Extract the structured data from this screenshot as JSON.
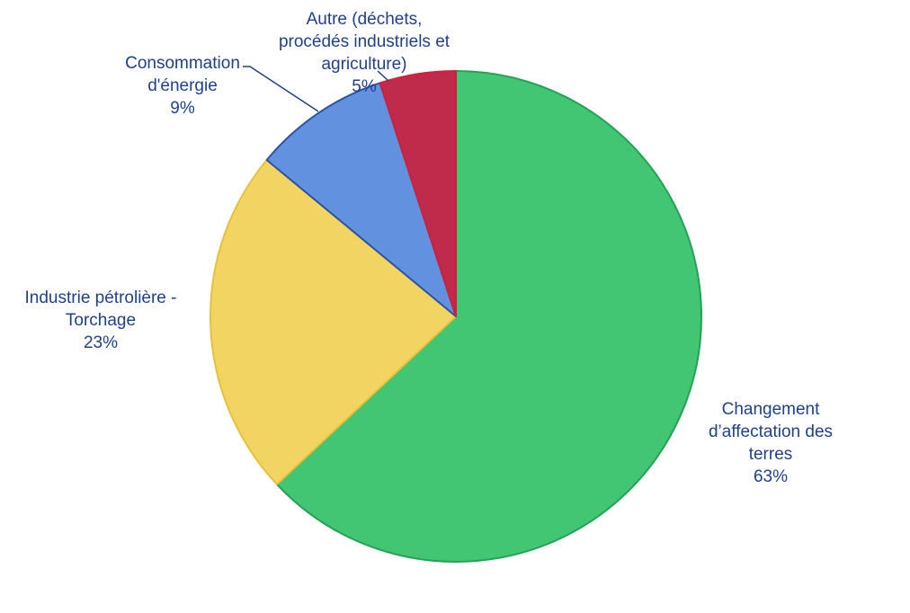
{
  "chart_data": {
    "type": "pie",
    "title": "",
    "slices": [
      {
        "name": "Changement d’affectation des terres",
        "value": 63,
        "label_lines": [
          "Changement",
          "d’affectation des",
          "terres"
        ],
        "pct_text": "63%",
        "color": "#42c674",
        "stroke": "#25a157"
      },
      {
        "name": "Industrie pétrolière - Torchage",
        "value": 23,
        "label_lines": [
          "Industrie pétrolière -",
          "Torchage"
        ],
        "pct_text": "23%",
        "color": "#f1d462",
        "stroke": "#e8c13a"
      },
      {
        "name": "Consommation d'énergie",
        "value": 9,
        "label_lines": [
          "Consommation",
          "d'énergie"
        ],
        "pct_text": "9%",
        "color": "#6292df",
        "stroke": "#2b52a3"
      },
      {
        "name": "Autre (déchets, procédés industriels et agriculture)",
        "value": 5,
        "label_lines": [
          "Autre (déchets,",
          "procédés industriels et",
          "agriculture)"
        ],
        "pct_text": "5%",
        "color": "#c12b4b",
        "stroke": "#d01f3a"
      }
    ],
    "label_color": "#1f3f8f",
    "leader_color": "#1f3f8f"
  }
}
